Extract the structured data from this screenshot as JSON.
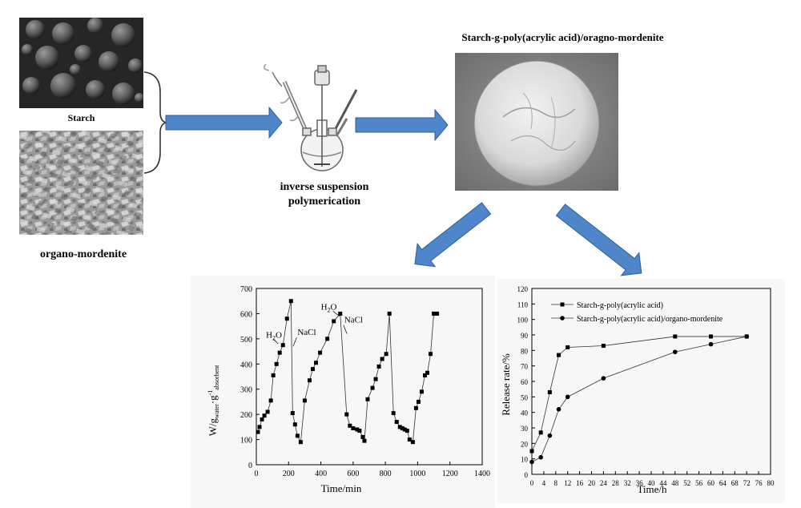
{
  "labels": {
    "starch": "Starch",
    "organo_mordenite": "organo-mordenite",
    "process_line1": "inverse suspension",
    "process_line2": "polymerication",
    "product_title": "Starch-g-poly(acrylic acid)/oragno-mordenite"
  },
  "colors": {
    "arrow_fill": "#4f86c9",
    "arrow_stroke": "#2e5f9a"
  },
  "icons": [
    "reaction-apparatus-icon"
  ],
  "chart_data": [
    {
      "type": "line",
      "xlabel": "Time/min",
      "ylabel": {
        "main": "W/g",
        "sub1": "water",
        "mid": "·g",
        "sup": "-1",
        "sub2": "absorbent"
      },
      "xlim": [
        0,
        1400
      ],
      "ylim": [
        0,
        700
      ],
      "xticks": [
        "0",
        "200",
        "400",
        "600",
        "800",
        "1000",
        "1200",
        "1400"
      ],
      "yticks": [
        "0",
        "100",
        "200",
        "300",
        "400",
        "500",
        "600",
        "700"
      ],
      "annotations": [
        {
          "text": "H2O",
          "main": "H",
          "sub": "2",
          "tail": "O",
          "at": [
            60,
            505
          ]
        },
        {
          "text": "NaCl",
          "at": [
            255,
            515
          ]
        },
        {
          "text": "H2O",
          "main": "H",
          "sub": "2",
          "tail": "O",
          "at": [
            400,
            615
          ]
        },
        {
          "text": "NaCl",
          "at": [
            545,
            565
          ]
        }
      ],
      "series": [
        {
          "values_x": [
            10,
            20,
            35,
            50,
            70,
            90,
            105,
            125,
            145,
            165,
            190,
            215,
            225,
            240,
            255,
            275,
            300,
            330,
            350,
            370,
            395,
            440,
            480,
            520,
            560,
            580,
            600,
            625,
            640,
            660,
            670,
            690,
            720,
            740,
            760,
            780,
            805,
            825,
            850,
            870,
            890,
            905,
            920,
            935,
            950,
            970,
            990,
            1005,
            1025,
            1045,
            1060,
            1080,
            1100,
            1120
          ],
          "values_y": [
            130,
            150,
            180,
            195,
            210,
            255,
            355,
            400,
            445,
            475,
            580,
            650,
            205,
            160,
            115,
            90,
            255,
            335,
            380,
            405,
            445,
            500,
            570,
            600,
            200,
            155,
            145,
            140,
            135,
            110,
            95,
            260,
            305,
            340,
            390,
            420,
            440,
            600,
            205,
            170,
            150,
            145,
            140,
            135,
            100,
            90,
            225,
            250,
            290,
            355,
            365,
            440,
            600,
            600
          ]
        }
      ]
    },
    {
      "type": "line",
      "xlabel": "Time/h",
      "ylabel": "Release rate/%",
      "xlim": [
        0,
        80
      ],
      "ylim": [
        0,
        120
      ],
      "xticks": [
        "0",
        "4",
        "8",
        "12",
        "16",
        "20",
        "24",
        "28",
        "32",
        "36",
        "40",
        "44",
        "48",
        "52",
        "56",
        "60",
        "64",
        "68",
        "72",
        "76",
        "80"
      ],
      "yticks": [
        "0",
        "10",
        "20",
        "30",
        "40",
        "50",
        "60",
        "70",
        "80",
        "90",
        "100",
        "110",
        "120"
      ],
      "legend_position": "top-left",
      "series": [
        {
          "name": "Starch-g-poly(acrylic acid)",
          "marker": "square",
          "x": [
            0,
            3,
            6,
            9,
            12,
            24,
            48,
            60,
            72
          ],
          "y": [
            15,
            27,
            53,
            77,
            82,
            83,
            89,
            89,
            89
          ]
        },
        {
          "name": "Starch-g-poly(acrylic acid)/organo-mordenite",
          "marker": "circle",
          "x": [
            0,
            3,
            6,
            9,
            12,
            24,
            48,
            60,
            72
          ],
          "y": [
            8,
            11,
            25,
            42,
            50,
            62,
            79,
            84,
            89
          ]
        }
      ]
    }
  ]
}
